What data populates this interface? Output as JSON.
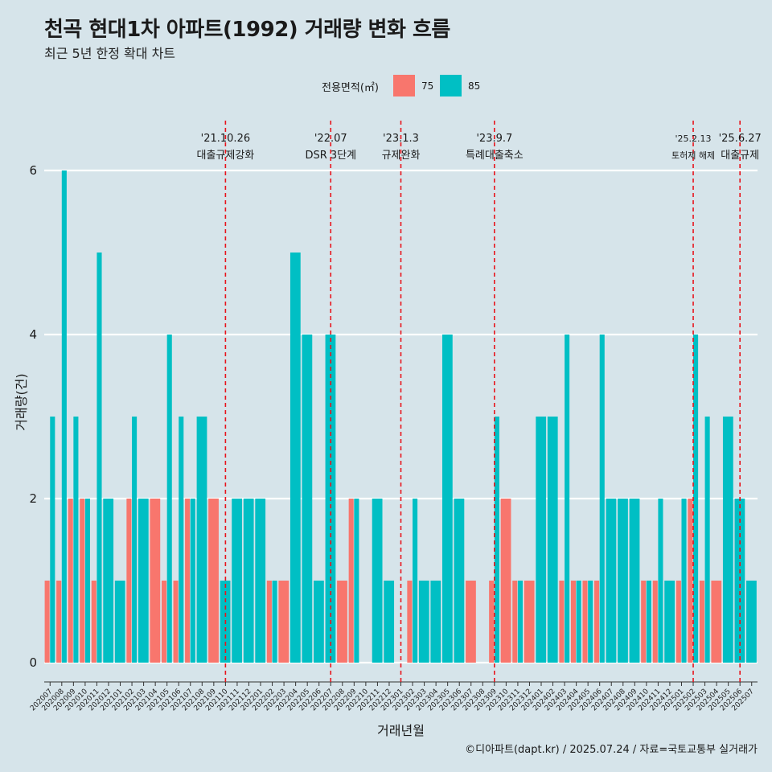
{
  "title": "천곡 현대1차 아파트(1992) 거래량 변화 흐름",
  "subtitle": "최근 5년 한정 확대 차트",
  "legend": {
    "title": "전용면적(㎡)",
    "items": [
      {
        "label": "75",
        "color": "#f8766d"
      },
      {
        "label": "85",
        "color": "#00bfc4"
      }
    ]
  },
  "caption": "©디아파트(dapt.kr) / 2025.07.24 / 자료=국토교통부 실거래가",
  "chart_data": {
    "type": "bar",
    "stacked": false,
    "xlabel": "거래년월",
    "ylabel": "거래량(건)",
    "ylim": [
      0,
      6
    ],
    "yticks": [
      0,
      2,
      4,
      6
    ],
    "categories": [
      "202007",
      "202008",
      "202009",
      "202010",
      "202011",
      "202012",
      "202101",
      "202102",
      "202103",
      "202104",
      "202105",
      "202106",
      "202107",
      "202108",
      "202109",
      "202110",
      "202111",
      "202112",
      "202201",
      "202202",
      "202203",
      "202204",
      "202205",
      "202206",
      "202207",
      "202208",
      "202209",
      "202210",
      "202211",
      "202212",
      "202301",
      "202302",
      "202303",
      "202304",
      "202305",
      "202306",
      "202307",
      "202308",
      "202309",
      "202310",
      "202311",
      "202312",
      "202401",
      "202402",
      "202403",
      "202404",
      "202405",
      "202406",
      "202407",
      "202408",
      "202409",
      "202410",
      "202411",
      "202412",
      "202501",
      "202502",
      "202503",
      "202504",
      "202505",
      "202506",
      "202507"
    ],
    "series": [
      {
        "name": "75",
        "color": "#f8766d",
        "values": [
          1,
          1,
          2,
          2,
          1,
          0,
          0,
          2,
          0,
          2,
          1,
          1,
          2,
          0,
          2,
          0,
          0,
          0,
          0,
          1,
          1,
          0,
          0,
          0,
          0,
          1,
          2,
          0,
          0,
          0,
          0,
          1,
          0,
          0,
          0,
          0,
          1,
          0,
          1,
          2,
          1,
          1,
          0,
          0,
          1,
          1,
          1,
          1,
          0,
          0,
          0,
          1,
          1,
          0,
          1,
          2,
          1,
          1,
          0,
          0,
          0
        ]
      },
      {
        "name": "85",
        "color": "#00bfc4",
        "values": [
          3,
          6,
          3,
          2,
          5,
          2,
          1,
          3,
          2,
          0,
          4,
          3,
          2,
          3,
          0,
          1,
          2,
          2,
          2,
          1,
          0,
          5,
          4,
          1,
          4,
          0,
          2,
          0,
          2,
          1,
          0,
          2,
          1,
          1,
          4,
          2,
          0,
          0,
          3,
          0,
          1,
          0,
          3,
          3,
          4,
          1,
          1,
          4,
          2,
          2,
          2,
          1,
          2,
          1,
          2,
          4,
          3,
          0,
          3,
          2,
          1
        ]
      }
    ],
    "events": [
      {
        "date": "'21.10.26",
        "label": "대출규제강화",
        "category": "202110"
      },
      {
        "date": "'22.07",
        "label": "DSR 3단계",
        "category": "202207"
      },
      {
        "date": "'23.1.3",
        "label": "규제완화",
        "category": "202301"
      },
      {
        "date": "'23.9.7",
        "label": "특례대출축소",
        "category": "202309"
      },
      {
        "date": "'25.2.13",
        "label": "토허제 해제",
        "category": "202502"
      },
      {
        "date": "'25.6.27",
        "label": "대출규제",
        "category": "202506"
      }
    ]
  }
}
